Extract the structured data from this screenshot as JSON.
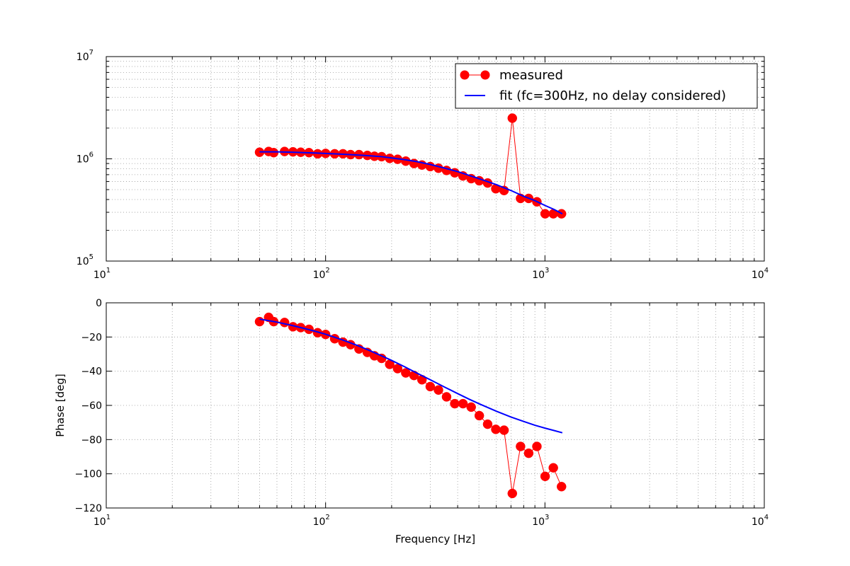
{
  "chart_data": [
    {
      "type": "line",
      "title": "",
      "xlabel": "",
      "ylabel": "",
      "xscale": "log",
      "yscale": "log",
      "xlim": [
        10,
        10000
      ],
      "ylim": [
        100000,
        10000000
      ],
      "grid": true,
      "legend_position": "top-right",
      "x_ticks": [
        {
          "value": 10,
          "base": "10",
          "exp": "1"
        },
        {
          "value": 100,
          "base": "10",
          "exp": "2"
        },
        {
          "value": 1000,
          "base": "10",
          "exp": "3"
        },
        {
          "value": 10000,
          "base": "10",
          "exp": "4"
        }
      ],
      "y_ticks": [
        {
          "value": 100000,
          "base": "10",
          "exp": "5"
        },
        {
          "value": 1000000,
          "base": "10",
          "exp": "6"
        },
        {
          "value": 10000000,
          "base": "10",
          "exp": "7"
        }
      ],
      "series": [
        {
          "name": "measured",
          "style": "markers-line",
          "color": "#ff0000",
          "x": [
            50,
            55,
            58,
            65,
            71,
            77,
            84,
            92,
            100,
            110,
            120,
            130,
            142,
            155,
            167,
            180,
            196,
            213,
            232,
            253,
            275,
            300,
            327,
            356,
            388,
            423,
            461,
            502,
            548,
            597,
            651,
            710,
            774,
            843,
            919,
            1002,
            1092,
            1190
          ],
          "y": [
            1160000,
            1180000,
            1150000,
            1180000,
            1170000,
            1160000,
            1150000,
            1120000,
            1130000,
            1120000,
            1120000,
            1100000,
            1100000,
            1080000,
            1060000,
            1050000,
            1010000,
            990000,
            950000,
            900000,
            870000,
            840000,
            810000,
            770000,
            730000,
            680000,
            640000,
            610000,
            580000,
            510000,
            490000,
            2500000,
            410000,
            410000,
            380000,
            290000,
            290000,
            290000
          ]
        },
        {
          "name": "fit (fc=300Hz, no delay considered)",
          "style": "line",
          "color": "#0000ff",
          "x": [
            50,
            60,
            70,
            80,
            90,
            100,
            120,
            140,
            160,
            180,
            200,
            230,
            260,
            300,
            350,
            400,
            450,
            500,
            600,
            700,
            800,
            900,
            1000,
            1100,
            1200
          ],
          "y": [
            1170000,
            1170000,
            1160000,
            1150000,
            1140000,
            1130000,
            1110000,
            1090000,
            1070000,
            1050000,
            1020000,
            980000,
            940000,
            880000,
            810000,
            750000,
            690000,
            640000,
            560000,
            490000,
            430000,
            390000,
            350000,
            320000,
            290000
          ]
        }
      ],
      "legend": [
        {
          "label": "measured",
          "color": "#ff0000",
          "kind": "marker-line"
        },
        {
          "label": "fit (fc=300Hz, no delay considered)",
          "color": "#0000ff",
          "kind": "line"
        }
      ]
    },
    {
      "type": "line",
      "title": "",
      "xlabel": "Frequency [Hz]",
      "ylabel": "Phase [deg]",
      "xscale": "log",
      "yscale": "linear",
      "xlim": [
        10,
        10000
      ],
      "ylim": [
        -120,
        0
      ],
      "grid": true,
      "x_ticks": [
        {
          "value": 10,
          "base": "10",
          "exp": "1"
        },
        {
          "value": 100,
          "base": "10",
          "exp": "2"
        },
        {
          "value": 1000,
          "base": "10",
          "exp": "3"
        },
        {
          "value": 10000,
          "base": "10",
          "exp": "4"
        }
      ],
      "y_ticks": [
        {
          "value": 0,
          "label": "0"
        },
        {
          "value": -20,
          "label": "−20"
        },
        {
          "value": -40,
          "label": "−40"
        },
        {
          "value": -60,
          "label": "−60"
        },
        {
          "value": -80,
          "label": "−80"
        },
        {
          "value": -100,
          "label": "−100"
        },
        {
          "value": -120,
          "label": "−120"
        }
      ],
      "series": [
        {
          "name": "measured",
          "style": "markers-line",
          "color": "#ff0000",
          "x": [
            50,
            55,
            58,
            65,
            71,
            77,
            84,
            92,
            100,
            110,
            120,
            130,
            142,
            155,
            167,
            180,
            196,
            213,
            232,
            253,
            275,
            300,
            327,
            356,
            388,
            423,
            461,
            502,
            548,
            597,
            651,
            710,
            774,
            843,
            919,
            1002,
            1092,
            1190
          ],
          "y": [
            -11,
            -8.5,
            -11,
            -11.5,
            -14,
            -14.5,
            -15.5,
            -17.5,
            -18.5,
            -21,
            -23,
            -24.5,
            -27,
            -29,
            -31,
            -32.5,
            -36,
            -38.5,
            -41,
            -42.5,
            -45,
            -49,
            -51,
            -55,
            -59,
            -59,
            -61,
            -66,
            -71,
            -74,
            -74.5,
            -111.5,
            -84,
            -88,
            -84,
            -101.5,
            -96.5,
            -107.5
          ]
        },
        {
          "name": "fit (fc=300Hz, no delay considered)",
          "style": "line",
          "color": "#0000ff",
          "x": [
            50,
            60,
            70,
            80,
            90,
            100,
            120,
            140,
            160,
            180,
            200,
            230,
            260,
            300,
            350,
            400,
            450,
            500,
            600,
            700,
            800,
            900,
            1000,
            1100,
            1200
          ],
          "y": [
            -9.5,
            -11.3,
            -13.2,
            -15,
            -16.7,
            -18.4,
            -21.8,
            -25,
            -28.1,
            -31,
            -33.7,
            -37.5,
            -41,
            -45,
            -49.4,
            -53.1,
            -56.3,
            -59,
            -63.4,
            -66.8,
            -69.4,
            -71.6,
            -73.3,
            -74.7,
            -76
          ]
        }
      ]
    }
  ]
}
